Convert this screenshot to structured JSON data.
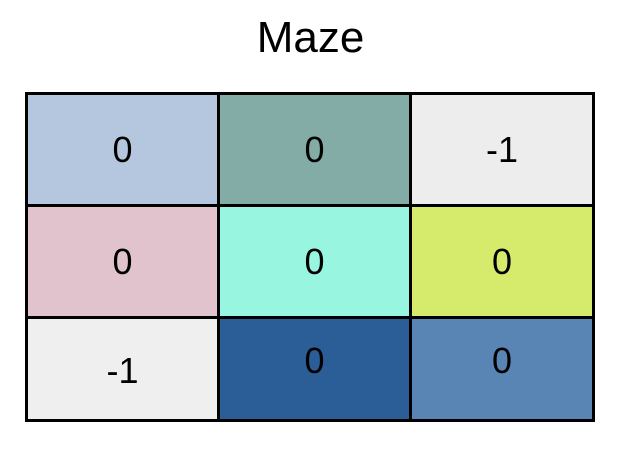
{
  "title": "Maze",
  "grid": {
    "rows": [
      [
        {
          "value": "0",
          "color": "#b5c7de"
        },
        {
          "value": "0",
          "color": "#83aca6"
        },
        {
          "value": "-1",
          "color": "#ededed"
        }
      ],
      [
        {
          "value": "0",
          "color": "#e0c3cc"
        },
        {
          "value": "0",
          "color": "#98f5e0"
        },
        {
          "value": "0",
          "color": "#d6ea6c"
        }
      ],
      [
        {
          "value": "-1",
          "color": "#efefef"
        },
        {
          "value": "0",
          "color": "#2b5e97"
        },
        {
          "value": "0",
          "color": "#5885b4"
        }
      ]
    ]
  }
}
